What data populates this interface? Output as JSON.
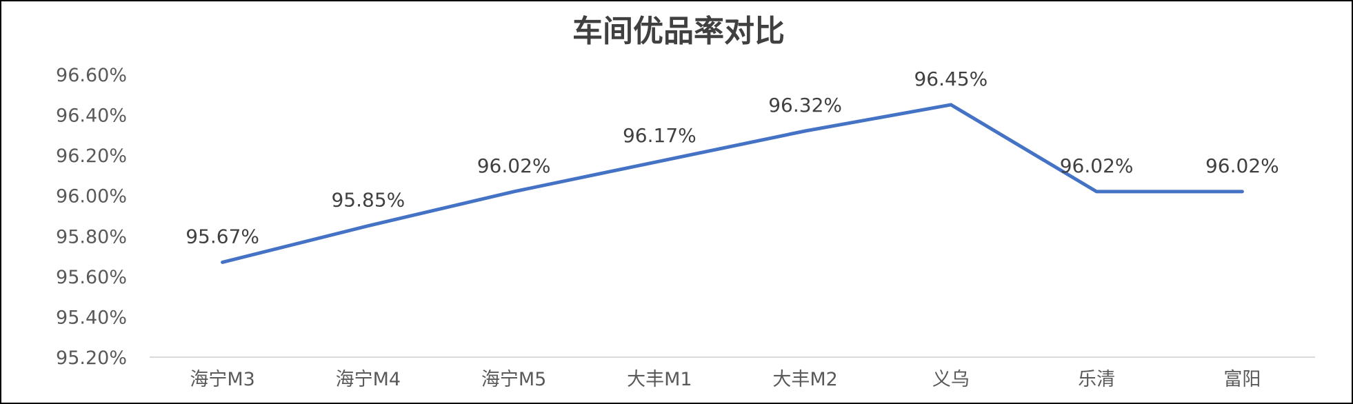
{
  "chart_data": {
    "type": "line",
    "title": "车间优品率对比",
    "categories": [
      "海宁M3",
      "海宁M4",
      "海宁M5",
      "大丰M1",
      "大丰M2",
      "义乌",
      "乐清",
      "富阳"
    ],
    "series": [
      {
        "values": [
          95.67,
          95.85,
          96.02,
          96.17,
          96.32,
          96.45,
          96.02,
          96.02
        ],
        "data_labels": [
          "95.67%",
          "95.85%",
          "96.02%",
          "96.17%",
          "96.32%",
          "96.45%",
          "96.02%",
          "96.02%"
        ]
      }
    ],
    "y_ticks": [
      "95.20%",
      "95.40%",
      "95.60%",
      "95.80%",
      "96.00%",
      "96.20%",
      "96.40%",
      "96.60%"
    ],
    "ylim": [
      95.2,
      96.6
    ],
    "grid": false,
    "legend": "none",
    "colors": {
      "line": "#4472C4",
      "axis": "#D9D9D9",
      "title": "#404040",
      "tick_text": "#595959",
      "label_text": "#404040"
    }
  }
}
